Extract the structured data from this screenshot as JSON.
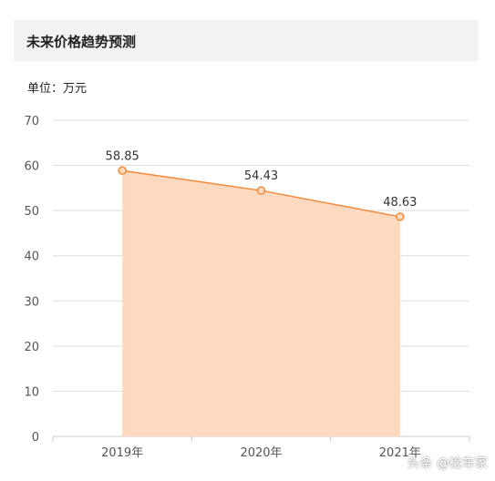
{
  "header": {
    "title": "未来价格趋势预测"
  },
  "unit_label": "单位：万元",
  "watermark": "头条 @检车家",
  "colors": {
    "line": "#f08a3c",
    "fill": "#fdd9bf",
    "grid": "#dddddd",
    "axis": "#cccccc",
    "header_bg": "#f2f2f2"
  },
  "chart_data": {
    "type": "area",
    "title": "未来价格趋势预测",
    "ylabel": "单位：万元",
    "categories": [
      "2019年",
      "2020年",
      "2021年"
    ],
    "series": [
      {
        "values": [
          58.85,
          54.43,
          48.63
        ]
      }
    ],
    "yticks": [
      0,
      10,
      20,
      30,
      40,
      50,
      60,
      70
    ],
    "ylim": [
      0,
      70
    ],
    "grid": true,
    "data_labels": [
      "58.85",
      "54.43",
      "48.63"
    ]
  }
}
